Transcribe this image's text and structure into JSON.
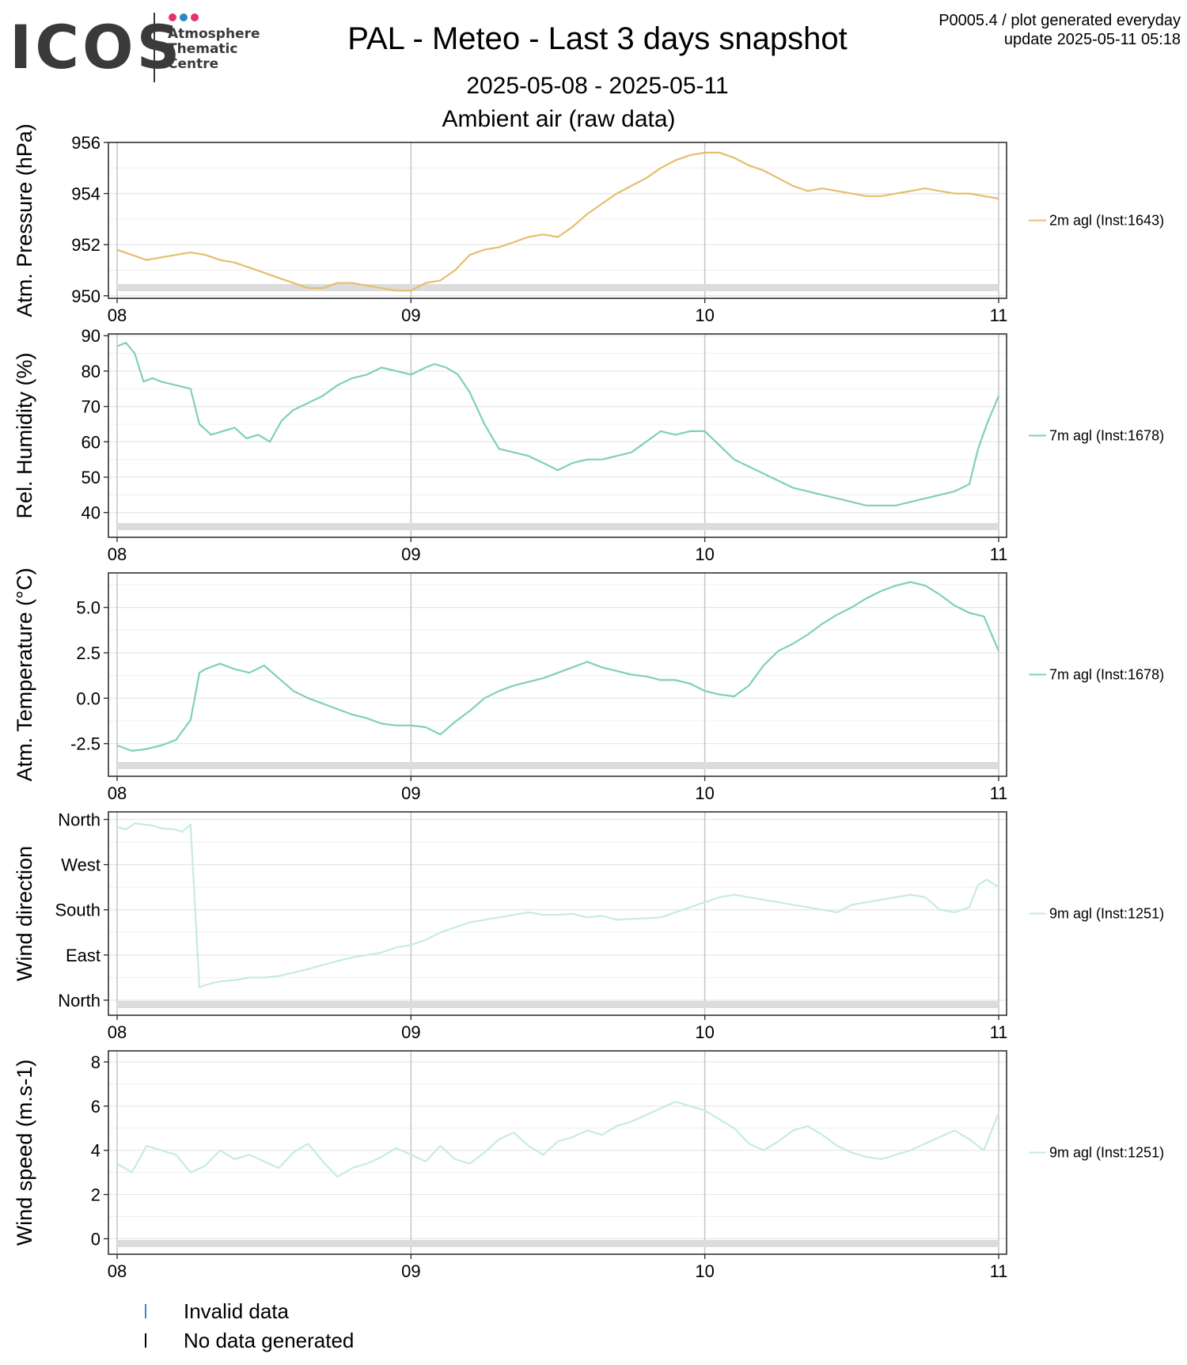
{
  "header": {
    "title": "PAL - Meteo - Last 3 days snapshot",
    "date_range": "2025-05-08 - 2025-05-11",
    "subtitle": "Ambient air (raw data)",
    "product": "P0005.4 / plot generated everyday",
    "update": "update  2025-05-11 05:18"
  },
  "logo": {
    "word": "ICOS",
    "line1": "Atmosphere",
    "line2": "Thematic",
    "line3": "Centre",
    "dot_colors": [
      "#e2336b",
      "#2a8ac6",
      "#e2336b"
    ]
  },
  "legend_bottom": {
    "invalid_label": "Invalid data",
    "invalid_color": "#3b86c8",
    "nodata_label": "No data generated",
    "nodata_color": "#000000"
  },
  "chart_data": [
    {
      "type": "line",
      "ylabel": "Atm. Pressure (hPa)",
      "ylim": [
        949.9,
        956.0
      ],
      "yticks": [
        950,
        952,
        954,
        956
      ],
      "yticklabels": [
        "950",
        "952",
        "954",
        "956"
      ],
      "xticklabels": [
        "08",
        "09",
        "10",
        "11"
      ],
      "xlim": [
        0,
        3
      ],
      "grid": true,
      "color": "#e3bf6a",
      "series": [
        {
          "name": "2m agl (Inst:1643)",
          "x": [
            0,
            0.05,
            0.1,
            0.15,
            0.2,
            0.25,
            0.3,
            0.35,
            0.4,
            0.45,
            0.5,
            0.55,
            0.6,
            0.65,
            0.7,
            0.75,
            0.8,
            0.85,
            0.9,
            0.95,
            1.0,
            1.05,
            1.1,
            1.15,
            1.2,
            1.25,
            1.3,
            1.35,
            1.4,
            1.45,
            1.5,
            1.55,
            1.6,
            1.65,
            1.7,
            1.75,
            1.8,
            1.85,
            1.9,
            1.95,
            2.0,
            2.05,
            2.1,
            2.15,
            2.2,
            2.25,
            2.3,
            2.35,
            2.4,
            2.45,
            2.5,
            2.55,
            2.6,
            2.65,
            2.7,
            2.75,
            2.8,
            2.85,
            2.9,
            2.95,
            3.0
          ],
          "values": [
            951.8,
            951.6,
            951.4,
            951.5,
            951.6,
            951.7,
            951.6,
            951.4,
            951.3,
            951.1,
            950.9,
            950.7,
            950.5,
            950.3,
            950.3,
            950.5,
            950.5,
            950.4,
            950.3,
            950.2,
            950.2,
            950.5,
            950.6,
            951.0,
            951.6,
            951.8,
            951.9,
            952.1,
            952.3,
            952.4,
            952.3,
            952.7,
            953.2,
            953.6,
            954.0,
            954.3,
            954.6,
            955.0,
            955.3,
            955.5,
            955.6,
            955.6,
            955.4,
            955.1,
            954.9,
            954.6,
            954.3,
            954.1,
            954.2,
            954.1,
            954.0,
            953.9,
            953.9,
            954.0,
            954.1,
            954.2,
            954.1,
            954.0,
            954.0,
            953.9,
            953.8
          ]
        }
      ]
    },
    {
      "type": "line",
      "ylabel": "Rel. Humidity (%)",
      "ylim": [
        33.0,
        90.5
      ],
      "yticks": [
        40,
        50,
        60,
        70,
        80,
        90
      ],
      "yticklabels": [
        "40",
        "50",
        "60",
        "70",
        "80",
        "90"
      ],
      "xticklabels": [
        "08",
        "09",
        "10",
        "11"
      ],
      "xlim": [
        0,
        3
      ],
      "grid": true,
      "color": "#7fcfbd",
      "series": [
        {
          "name": "7m agl (Inst:1678)",
          "x": [
            0,
            0.03,
            0.06,
            0.09,
            0.12,
            0.15,
            0.2,
            0.25,
            0.28,
            0.32,
            0.36,
            0.4,
            0.44,
            0.48,
            0.52,
            0.56,
            0.6,
            0.65,
            0.7,
            0.75,
            0.8,
            0.85,
            0.9,
            0.95,
            1.0,
            1.05,
            1.08,
            1.12,
            1.16,
            1.2,
            1.25,
            1.3,
            1.35,
            1.4,
            1.45,
            1.5,
            1.55,
            1.6,
            1.65,
            1.7,
            1.75,
            1.8,
            1.85,
            1.9,
            1.95,
            2.0,
            2.05,
            2.1,
            2.15,
            2.2,
            2.25,
            2.3,
            2.35,
            2.4,
            2.45,
            2.5,
            2.55,
            2.6,
            2.65,
            2.7,
            2.75,
            2.8,
            2.85,
            2.9,
            2.93,
            2.96,
            3.0
          ],
          "values": [
            87,
            88,
            85,
            77,
            78,
            77,
            76,
            75,
            65,
            62,
            63,
            64,
            61,
            62,
            60,
            66,
            69,
            71,
            73,
            76,
            78,
            79,
            81,
            80,
            79,
            81,
            82,
            81,
            79,
            74,
            65,
            58,
            57,
            56,
            54,
            52,
            54,
            55,
            55,
            56,
            57,
            60,
            63,
            62,
            63,
            63,
            59,
            55,
            53,
            51,
            49,
            47,
            46,
            45,
            44,
            43,
            42,
            42,
            42,
            43,
            44,
            45,
            46,
            48,
            58,
            65,
            73
          ]
        }
      ]
    },
    {
      "type": "line",
      "ylabel": "Atm. Temperature (°C)",
      "ylim": [
        -4.3,
        6.9
      ],
      "yticks": [
        -2.5,
        0.0,
        2.5,
        5.0
      ],
      "yticklabels": [
        "-2.5",
        "0.0",
        "2.5",
        "5.0"
      ],
      "xticklabels": [
        "08",
        "09",
        "10",
        "11"
      ],
      "xlim": [
        0,
        3
      ],
      "grid": true,
      "color": "#7fcfbd",
      "series": [
        {
          "name": "7m agl (Inst:1678)",
          "x": [
            0,
            0.05,
            0.1,
            0.15,
            0.2,
            0.25,
            0.28,
            0.3,
            0.35,
            0.4,
            0.45,
            0.5,
            0.55,
            0.6,
            0.65,
            0.7,
            0.75,
            0.8,
            0.85,
            0.9,
            0.95,
            1.0,
            1.05,
            1.1,
            1.15,
            1.2,
            1.25,
            1.3,
            1.35,
            1.4,
            1.45,
            1.5,
            1.55,
            1.6,
            1.65,
            1.7,
            1.75,
            1.8,
            1.85,
            1.9,
            1.95,
            2.0,
            2.05,
            2.1,
            2.15,
            2.2,
            2.25,
            2.3,
            2.35,
            2.4,
            2.45,
            2.5,
            2.55,
            2.6,
            2.65,
            2.7,
            2.75,
            2.8,
            2.85,
            2.9,
            2.95,
            3.0
          ],
          "values": [
            -2.6,
            -2.9,
            -2.8,
            -2.6,
            -2.3,
            -1.2,
            1.4,
            1.6,
            1.9,
            1.6,
            1.4,
            1.8,
            1.1,
            0.4,
            0.0,
            -0.3,
            -0.6,
            -0.9,
            -1.1,
            -1.4,
            -1.5,
            -1.5,
            -1.6,
            -2.0,
            -1.3,
            -0.7,
            0.0,
            0.4,
            0.7,
            0.9,
            1.1,
            1.4,
            1.7,
            2.0,
            1.7,
            1.5,
            1.3,
            1.2,
            1.0,
            1.0,
            0.8,
            0.4,
            0.2,
            0.1,
            0.7,
            1.8,
            2.6,
            3.0,
            3.5,
            4.1,
            4.6,
            5.0,
            5.5,
            5.9,
            6.2,
            6.4,
            6.2,
            5.7,
            5.1,
            4.7,
            4.5,
            2.6
          ]
        }
      ]
    },
    {
      "type": "line",
      "ylabel": "Wind direction",
      "ylim": [
        -30,
        375
      ],
      "yticks": [
        0,
        90,
        180,
        270,
        360
      ],
      "yticklabels": [
        "North",
        "East",
        "South",
        "West",
        "North"
      ],
      "xticklabels": [
        "08",
        "09",
        "10",
        "11"
      ],
      "xlim": [
        0,
        3
      ],
      "grid": true,
      "color": "#c6ebe2",
      "series": [
        {
          "name": "9m agl (Inst:1251)",
          "x": [
            0,
            0.03,
            0.06,
            0.09,
            0.12,
            0.15,
            0.2,
            0.22,
            0.25,
            0.28,
            0.3,
            0.33,
            0.36,
            0.4,
            0.45,
            0.5,
            0.55,
            0.6,
            0.65,
            0.7,
            0.75,
            0.8,
            0.85,
            0.9,
            0.95,
            1.0,
            1.05,
            1.1,
            1.15,
            1.2,
            1.25,
            1.3,
            1.35,
            1.4,
            1.45,
            1.5,
            1.55,
            1.6,
            1.65,
            1.7,
            1.75,
            1.8,
            1.85,
            1.9,
            1.95,
            2.0,
            2.05,
            2.1,
            2.15,
            2.2,
            2.25,
            2.3,
            2.35,
            2.4,
            2.45,
            2.5,
            2.55,
            2.6,
            2.65,
            2.7,
            2.75,
            2.8,
            2.85,
            2.9,
            2.93,
            2.96,
            3.0
          ],
          "values": [
            345,
            340,
            352,
            350,
            348,
            342,
            340,
            335,
            350,
            25,
            30,
            35,
            38,
            40,
            45,
            45,
            48,
            55,
            62,
            70,
            78,
            85,
            90,
            95,
            105,
            110,
            120,
            135,
            145,
            155,
            160,
            165,
            170,
            175,
            170,
            170,
            172,
            165,
            168,
            160,
            162,
            163,
            165,
            175,
            185,
            195,
            205,
            210,
            205,
            200,
            195,
            190,
            185,
            180,
            175,
            190,
            195,
            200,
            205,
            210,
            205,
            180,
            175,
            185,
            230,
            240,
            225
          ]
        }
      ]
    },
    {
      "type": "line",
      "ylabel": "Wind speed (m.s-1)",
      "ylim": [
        -0.7,
        8.5
      ],
      "yticks": [
        0,
        2,
        4,
        6,
        8
      ],
      "yticklabels": [
        "0",
        "2",
        "4",
        "6",
        "8"
      ],
      "xticklabels": [
        "08",
        "09",
        "10",
        "11"
      ],
      "xlim": [
        0,
        3
      ],
      "grid": true,
      "color": "#c6ebe2",
      "series": [
        {
          "name": "9m agl (Inst:1251)",
          "x": [
            0,
            0.05,
            0.1,
            0.15,
            0.2,
            0.25,
            0.3,
            0.35,
            0.4,
            0.45,
            0.5,
            0.55,
            0.6,
            0.65,
            0.7,
            0.75,
            0.8,
            0.85,
            0.9,
            0.95,
            1.0,
            1.05,
            1.1,
            1.15,
            1.2,
            1.25,
            1.3,
            1.35,
            1.4,
            1.45,
            1.5,
            1.55,
            1.6,
            1.65,
            1.7,
            1.75,
            1.8,
            1.85,
            1.9,
            1.95,
            2.0,
            2.05,
            2.1,
            2.15,
            2.2,
            2.25,
            2.3,
            2.35,
            2.4,
            2.45,
            2.5,
            2.55,
            2.6,
            2.65,
            2.7,
            2.75,
            2.8,
            2.85,
            2.9,
            2.95,
            3.0
          ],
          "values": [
            3.4,
            3.0,
            4.2,
            4.0,
            3.8,
            3.0,
            3.3,
            4.0,
            3.6,
            3.8,
            3.5,
            3.2,
            3.9,
            4.3,
            3.5,
            2.8,
            3.2,
            3.4,
            3.7,
            4.1,
            3.8,
            3.5,
            4.2,
            3.6,
            3.4,
            3.9,
            4.5,
            4.8,
            4.2,
            3.8,
            4.4,
            4.6,
            4.9,
            4.7,
            5.1,
            5.3,
            5.6,
            5.9,
            6.2,
            6.0,
            5.8,
            5.4,
            5.0,
            4.3,
            4.0,
            4.4,
            4.9,
            5.1,
            4.7,
            4.2,
            3.9,
            3.7,
            3.6,
            3.8,
            4.0,
            4.3,
            4.6,
            4.9,
            4.5,
            4.0,
            5.7
          ]
        }
      ]
    }
  ]
}
